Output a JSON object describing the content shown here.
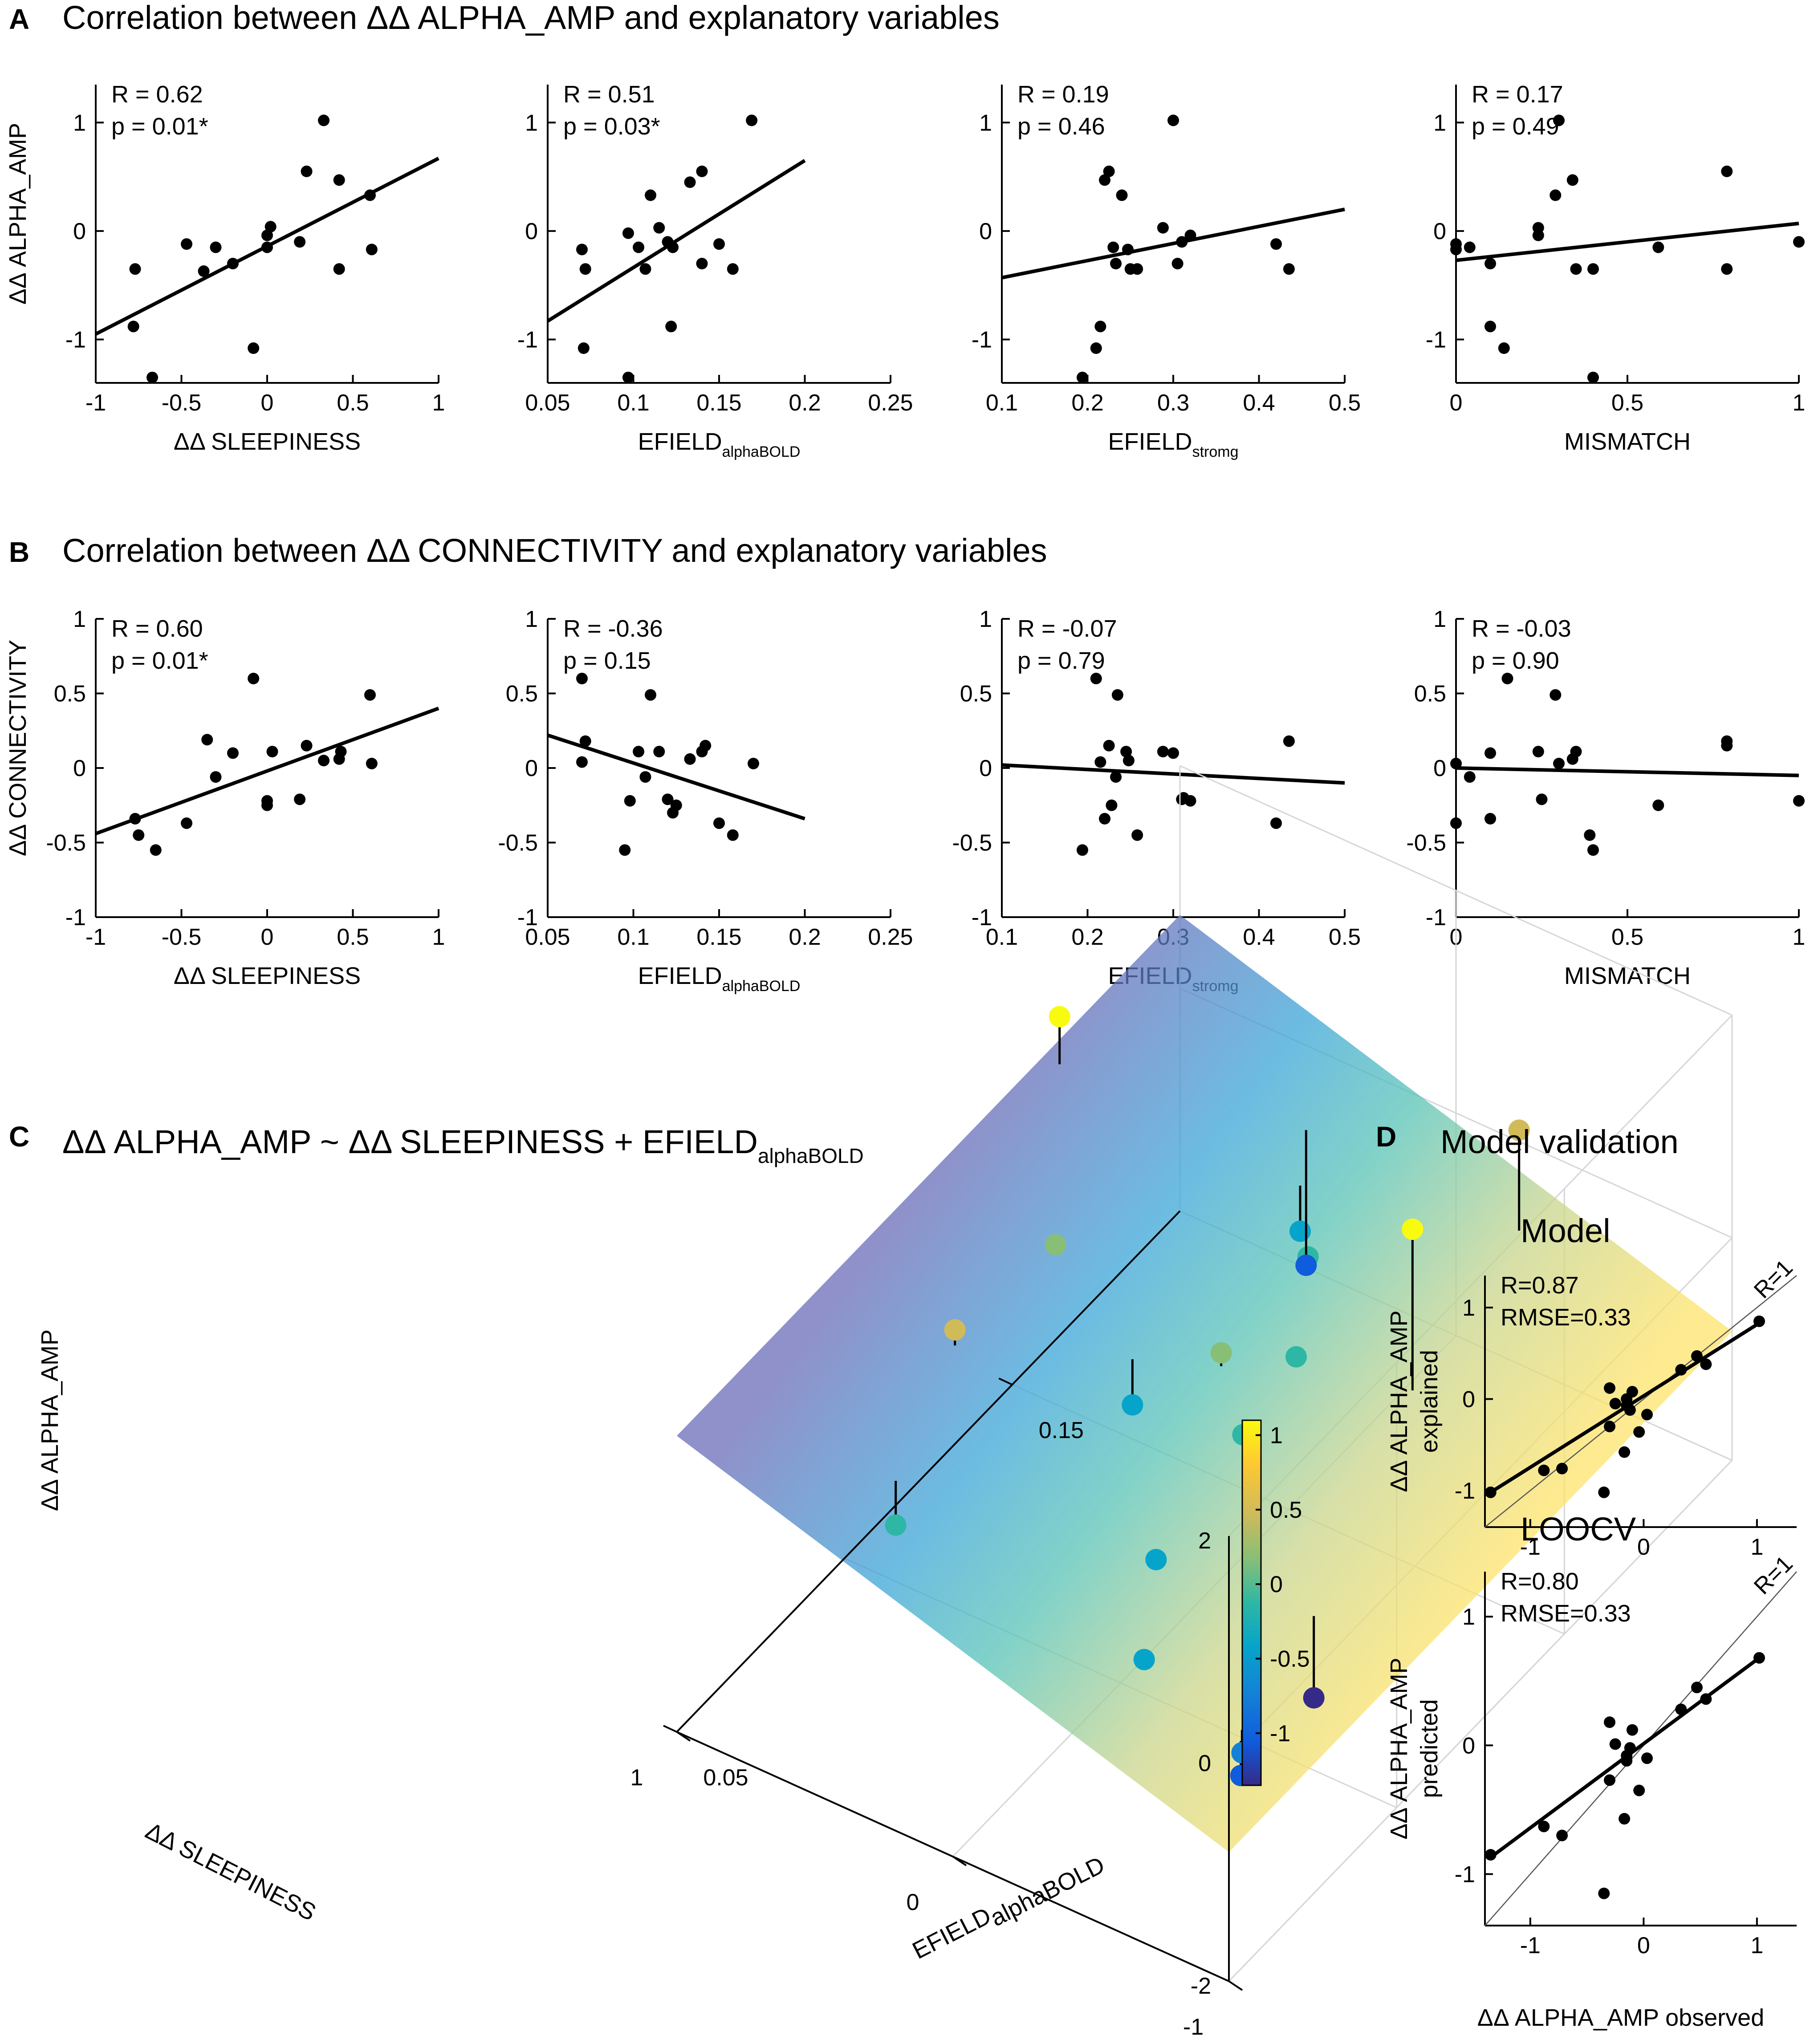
{
  "colors": {
    "parula": [
      "#352a87",
      "#0f5cdd",
      "#1481d6",
      "#06a4ca",
      "#2eb7a4",
      "#87bf77",
      "#d1bb59",
      "#fec832",
      "#f9fb0e"
    ],
    "point": "#000000"
  },
  "panels": {
    "A": {
      "letter": "A",
      "title": "Correlation between ΔΔ ALPHA_AMP and explanatory variables",
      "ylabel": "ΔΔ ALPHA_AMP"
    },
    "B": {
      "letter": "B",
      "title": "Correlation between ΔΔ CONNECTIVITY and explanatory variables",
      "ylabel": "ΔΔ CONNECTIVITY"
    },
    "C": {
      "letter": "C",
      "title_main": "ΔΔ ALPHA_AMP ~ ΔΔ SLEEPINESS + EFIELD",
      "title_sub": "alphaBOLD",
      "zlabel": "ΔΔ ALPHA_AMP",
      "xlabel": "ΔΔ SLEEPINESS",
      "ylabel_main": "EFIELD",
      "ylabel_sub": "alphaBOLD"
    },
    "D": {
      "letter": "D",
      "title": "Model validation",
      "xlabel": "ΔΔ ALPHA_AMP observed",
      "ref_label": "R=1"
    }
  },
  "chart_data": [
    {
      "id": "A1",
      "type": "scatter",
      "panel": "A",
      "stat_r": "R = 0.62",
      "stat_p": "p = 0.01*",
      "xlabel_main": "ΔΔ SLEEPINESS",
      "xlabel_sub": "",
      "xlim": [
        -1,
        1
      ],
      "ylim": [
        -1.4,
        1.35
      ],
      "xticks": [
        -1,
        -0.5,
        0,
        0.5,
        1
      ],
      "xtick_labels": [
        "-1",
        "-0.5",
        "0",
        "0.5",
        "1"
      ],
      "yticks": [
        -1,
        0,
        1
      ],
      "ytick_labels": [
        "-1",
        "0",
        "1"
      ],
      "x": [
        -0.77,
        -0.78,
        -0.67,
        -0.47,
        -0.37,
        -0.3,
        -0.2,
        -0.08,
        0.0,
        0.02,
        0.0,
        0.19,
        0.23,
        0.33,
        0.42,
        0.42,
        0.6,
        0.61
      ],
      "y": [
        -0.35,
        -0.88,
        -1.35,
        -0.12,
        -0.37,
        -0.15,
        -0.3,
        -1.08,
        -0.04,
        0.04,
        -0.15,
        -0.1,
        0.55,
        1.02,
        0.47,
        -0.35,
        0.33,
        -0.17
      ],
      "fit": [
        [
          -1,
          -0.95
        ],
        [
          1,
          0.67
        ]
      ]
    },
    {
      "id": "A2",
      "type": "scatter",
      "panel": "A",
      "stat_r": "R = 0.51",
      "stat_p": "p = 0.03*",
      "xlabel_main": "EFIELD",
      "xlabel_sub": "alphaBOLD",
      "xlim": [
        0.05,
        0.25
      ],
      "ylim": [
        -1.4,
        1.35
      ],
      "xticks": [
        0.05,
        0.1,
        0.15,
        0.2,
        0.25
      ],
      "xtick_labels": [
        "0.05",
        "0.1",
        "0.15",
        "0.2",
        "0.25"
      ],
      "yticks": [
        -1,
        0,
        1
      ],
      "ytick_labels": [
        "-1",
        "0",
        "1"
      ],
      "x": [
        0.07,
        0.072,
        0.071,
        0.097,
        0.097,
        0.103,
        0.107,
        0.11,
        0.115,
        0.12,
        0.122,
        0.123,
        0.133,
        0.14,
        0.14,
        0.15,
        0.158,
        0.169
      ],
      "y": [
        -0.17,
        -0.35,
        -1.08,
        -1.35,
        -0.02,
        -0.15,
        -0.35,
        0.33,
        0.03,
        -0.1,
        -0.88,
        -0.15,
        0.45,
        0.55,
        -0.3,
        -0.12,
        -0.35,
        1.02
      ],
      "fit": [
        [
          0.05,
          -0.83
        ],
        [
          0.2,
          0.65
        ]
      ]
    },
    {
      "id": "A3",
      "type": "scatter",
      "panel": "A",
      "stat_r": "R = 0.19",
      "stat_p": "p = 0.46",
      "xlabel_main": "EFIELD",
      "xlabel_sub": "stromg",
      "xlim": [
        0.1,
        0.5
      ],
      "ylim": [
        -1.4,
        1.35
      ],
      "xticks": [
        0.1,
        0.2,
        0.3,
        0.4,
        0.5
      ],
      "xtick_labels": [
        "0.1",
        "0.2",
        "0.3",
        "0.4",
        "0.5"
      ],
      "yticks": [
        -1,
        0,
        1
      ],
      "ytick_labels": [
        "-1",
        "0",
        "1"
      ],
      "x": [
        0.194,
        0.21,
        0.215,
        0.22,
        0.225,
        0.23,
        0.233,
        0.24,
        0.247,
        0.25,
        0.258,
        0.288,
        0.3,
        0.305,
        0.31,
        0.32,
        0.42,
        0.435
      ],
      "y": [
        -1.35,
        -1.08,
        -0.88,
        0.47,
        0.55,
        -0.15,
        -0.3,
        0.33,
        -0.17,
        -0.35,
        -0.35,
        0.03,
        1.02,
        -0.3,
        -0.1,
        -0.04,
        -0.12,
        -0.35
      ],
      "fit": [
        [
          0.1,
          -0.43
        ],
        [
          0.5,
          0.2
        ]
      ]
    },
    {
      "id": "A4",
      "type": "scatter",
      "panel": "A",
      "stat_r": "R = 0.17",
      "stat_p": "p = 0.49",
      "xlabel_main": "MISMATCH",
      "xlabel_sub": "",
      "xlim": [
        0,
        1
      ],
      "ylim": [
        -1.4,
        1.35
      ],
      "xticks": [
        0,
        0.5,
        1
      ],
      "xtick_labels": [
        "0",
        "0.5",
        "1"
      ],
      "yticks": [
        -1,
        0,
        1
      ],
      "ytick_labels": [
        "-1",
        "0",
        "1"
      ],
      "x": [
        0.0,
        0.0,
        0.04,
        0.1,
        0.1,
        0.14,
        0.24,
        0.24,
        0.29,
        0.3,
        0.34,
        0.35,
        0.4,
        0.4,
        0.59,
        0.79,
        0.79,
        1.0
      ],
      "y": [
        -0.12,
        -0.17,
        -0.15,
        -0.3,
        -0.88,
        -1.08,
        0.03,
        -0.04,
        0.33,
        1.02,
        0.47,
        -0.35,
        -0.35,
        -1.35,
        -0.15,
        0.55,
        -0.35,
        -0.1
      ],
      "fit": [
        [
          0,
          -0.27
        ],
        [
          1,
          0.07
        ]
      ]
    },
    {
      "id": "B1",
      "type": "scatter",
      "panel": "B",
      "stat_r": "R = 0.60",
      "stat_p": "p = 0.01*",
      "xlabel_main": "ΔΔ SLEEPINESS",
      "xlabel_sub": "",
      "xlim": [
        -1,
        1
      ],
      "ylim": [
        -1,
        1
      ],
      "xticks": [
        -1,
        -0.5,
        0,
        0.5,
        1
      ],
      "xtick_labels": [
        "-1",
        "-0.5",
        "0",
        "0.5",
        "1"
      ],
      "yticks": [
        -1,
        -0.5,
        0,
        0.5,
        1
      ],
      "ytick_labels": [
        "-1",
        "-0.5",
        "0",
        "0.5",
        "1"
      ],
      "x": [
        -0.77,
        -0.75,
        -0.65,
        -0.47,
        -0.35,
        -0.3,
        -0.2,
        -0.08,
        0.0,
        0.0,
        0.03,
        0.19,
        0.23,
        0.33,
        0.42,
        0.43,
        0.6,
        0.61
      ],
      "y": [
        -0.34,
        -0.45,
        -0.55,
        -0.37,
        0.19,
        -0.06,
        0.1,
        0.6,
        -0.22,
        -0.25,
        0.11,
        -0.21,
        0.15,
        0.05,
        0.06,
        0.11,
        0.49,
        0.03
      ],
      "fit": [
        [
          -1,
          -0.44
        ],
        [
          1,
          0.4
        ]
      ]
    },
    {
      "id": "B2",
      "type": "scatter",
      "panel": "B",
      "stat_r": "R = -0.36",
      "stat_p": "p = 0.15",
      "xlabel_main": "EFIELD",
      "xlabel_sub": "alphaBOLD",
      "xlim": [
        0.05,
        0.25
      ],
      "ylim": [
        -1,
        1
      ],
      "xticks": [
        0.05,
        0.1,
        0.15,
        0.2,
        0.25
      ],
      "xtick_labels": [
        "0.05",
        "0.1",
        "0.15",
        "0.2",
        "0.25"
      ],
      "yticks": [
        -1,
        -0.5,
        0,
        0.5,
        1
      ],
      "ytick_labels": [
        "-1",
        "-0.5",
        "0",
        "0.5",
        "1"
      ],
      "x": [
        0.07,
        0.07,
        0.072,
        0.095,
        0.098,
        0.103,
        0.107,
        0.11,
        0.115,
        0.12,
        0.123,
        0.125,
        0.133,
        0.14,
        0.142,
        0.15,
        0.158,
        0.17
      ],
      "y": [
        0.6,
        0.04,
        0.18,
        -0.55,
        -0.22,
        0.11,
        -0.06,
        0.49,
        0.11,
        -0.21,
        -0.3,
        -0.25,
        0.06,
        0.11,
        0.15,
        -0.37,
        -0.45,
        0.03
      ],
      "fit": [
        [
          0.05,
          0.22
        ],
        [
          0.2,
          -0.34
        ]
      ]
    },
    {
      "id": "B3",
      "type": "scatter",
      "panel": "B",
      "stat_r": "R = -0.07",
      "stat_p": "p = 0.79",
      "xlabel_main": "EFIELD",
      "xlabel_sub": "stromg",
      "xlim": [
        0.1,
        0.5
      ],
      "ylim": [
        -1,
        1
      ],
      "xticks": [
        0.1,
        0.2,
        0.3,
        0.4,
        0.5
      ],
      "xtick_labels": [
        "0.1",
        "0.2",
        "0.3",
        "0.4",
        "0.5"
      ],
      "yticks": [
        -1,
        -0.5,
        0,
        0.5,
        1
      ],
      "ytick_labels": [
        "-1",
        "-0.5",
        "0",
        "0.5",
        "1"
      ],
      "x": [
        0.194,
        0.21,
        0.215,
        0.22,
        0.225,
        0.228,
        0.233,
        0.235,
        0.245,
        0.248,
        0.258,
        0.288,
        0.3,
        0.31,
        0.312,
        0.32,
        0.42,
        0.435
      ],
      "y": [
        -0.55,
        0.6,
        0.04,
        -0.34,
        0.15,
        -0.25,
        -0.06,
        0.49,
        0.11,
        0.05,
        -0.45,
        0.11,
        0.1,
        -0.21,
        -0.2,
        -0.22,
        -0.37,
        0.18
      ],
      "fit": [
        [
          0.1,
          0.02
        ],
        [
          0.5,
          -0.1
        ]
      ]
    },
    {
      "id": "B4",
      "type": "scatter",
      "panel": "B",
      "stat_r": "R = -0.03",
      "stat_p": "p = 0.90",
      "xlabel_main": "MISMATCH",
      "xlabel_sub": "",
      "xlim": [
        0,
        1
      ],
      "ylim": [
        -1,
        1
      ],
      "xticks": [
        0,
        0.5,
        1
      ],
      "xtick_labels": [
        "0",
        "0.5",
        "1"
      ],
      "yticks": [
        -1,
        -0.5,
        0,
        0.5,
        1
      ],
      "ytick_labels": [
        "-1",
        "-0.5",
        "0",
        "0.5",
        "1"
      ],
      "x": [
        0.0,
        0.0,
        0.04,
        0.1,
        0.1,
        0.15,
        0.24,
        0.25,
        0.29,
        0.3,
        0.34,
        0.35,
        0.39,
        0.4,
        0.59,
        0.79,
        0.79,
        1.0
      ],
      "y": [
        0.03,
        -0.37,
        -0.06,
        0.1,
        -0.34,
        0.6,
        0.11,
        -0.21,
        0.49,
        0.03,
        0.06,
        0.11,
        -0.45,
        -0.55,
        -0.25,
        0.15,
        0.18,
        -0.22
      ],
      "fit": [
        [
          0,
          0.0
        ],
        [
          1,
          -0.05
        ]
      ]
    },
    {
      "id": "C",
      "type": "scatter",
      "panel": "C",
      "projection": "3d",
      "xlim": [
        -1,
        1
      ],
      "ylim": [
        0.05,
        0.2
      ],
      "zlim": [
        -2,
        2
      ],
      "xticks": [
        -1,
        0,
        1
      ],
      "xtick_labels": [
        "-1",
        "0",
        "1"
      ],
      "yticks": [
        0.05,
        0.15
      ],
      "ytick_labels": [
        "0.05",
        "0.15"
      ],
      "zticks": [
        -2,
        0,
        2
      ],
      "ztick_labels": [
        "-2",
        "0",
        "2"
      ],
      "plane": {
        "b0": -0.09,
        "b_sleep": 0.75,
        "b_efield": 0.0
      },
      "colorbar": {
        "min": -1.35,
        "max": 1.1,
        "ticks": [
          -1,
          -0.5,
          0,
          0.5,
          1
        ],
        "tick_labels": [
          "-1",
          "-0.5",
          "0",
          "0.5",
          "1"
        ]
      },
      "x": [
        -0.8,
        -0.78,
        -0.7,
        -0.45,
        -0.25,
        -0.45,
        -0.35,
        -0.2,
        -0.15,
        0.0,
        0.05,
        0.2,
        0.2,
        0.3,
        0.6,
        0.45,
        0.6,
        0.95
      ],
      "y": [
        0.07,
        0.072,
        0.1,
        0.07,
        0.09,
        0.15,
        0.19,
        0.12,
        0.14,
        0.13,
        0.16,
        0.12,
        0.17,
        0.18,
        0.1,
        0.07,
        0.13,
        0.16
      ],
      "z": [
        -1.0,
        -0.88,
        -1.35,
        -0.35,
        -0.3,
        1.02,
        0.55,
        -0.17,
        -0.15,
        0.03,
        -0.1,
        -0.35,
        -0.35,
        -1.08,
        0.5,
        -0.15,
        0.33,
        1.05
      ]
    },
    {
      "id": "D1",
      "type": "scatter",
      "panel": "D",
      "title": "Model",
      "stat_r": "R=0.87",
      "stat_rmse": "RMSE=0.33",
      "ylabel_main": "ΔΔ ALPHA_AMP",
      "ylabel_sub": "explained",
      "xlim": [
        -1.4,
        1.35
      ],
      "ylim": [
        -1.4,
        1.35
      ],
      "xticks": [
        -1,
        0,
        1
      ],
      "xtick_labels": [
        "-1",
        "0",
        "1"
      ],
      "yticks": [
        -1,
        0,
        1
      ],
      "ytick_labels": [
        "-1",
        "0",
        "1"
      ],
      "x": [
        -1.35,
        -0.88,
        -0.72,
        -0.35,
        -0.3,
        -0.3,
        -0.25,
        -0.17,
        -0.15,
        -0.15,
        -0.12,
        -0.1,
        -0.04,
        0.03,
        0.33,
        0.47,
        0.55,
        1.02
      ],
      "y": [
        -1.02,
        -0.78,
        -0.76,
        -1.02,
        0.12,
        -0.3,
        -0.05,
        -0.58,
        0.0,
        -0.07,
        -0.12,
        0.08,
        -0.36,
        -0.17,
        0.32,
        0.47,
        0.38,
        0.85
      ],
      "fit": [
        [
          -1.35,
          -1.02
        ],
        [
          1.02,
          0.83
        ]
      ]
    },
    {
      "id": "D2",
      "type": "scatter",
      "panel": "D",
      "title": "LOOCV",
      "stat_r": "R=0.80",
      "stat_rmse": "RMSE=0.33",
      "ylabel_main": "ΔΔ ALPHA_AMP",
      "ylabel_sub": "predicted",
      "xlim": [
        -1.4,
        1.35
      ],
      "ylim": [
        -1.4,
        1.35
      ],
      "xticks": [
        -1,
        0,
        1
      ],
      "xtick_labels": [
        "-1",
        "0",
        "1"
      ],
      "yticks": [
        -1,
        0,
        1
      ],
      "ytick_labels": [
        "-1",
        "0",
        "1"
      ],
      "x": [
        -1.35,
        -0.88,
        -0.72,
        -0.35,
        -0.3,
        -0.3,
        -0.25,
        -0.17,
        -0.15,
        -0.15,
        -0.12,
        -0.1,
        -0.04,
        0.03,
        0.33,
        0.47,
        0.55,
        1.02
      ],
      "y": [
        -0.85,
        -0.63,
        -0.7,
        -1.15,
        0.18,
        -0.27,
        0.01,
        -0.57,
        -0.08,
        -0.12,
        -0.02,
        0.12,
        -0.35,
        -0.1,
        0.28,
        0.45,
        0.36,
        0.68
      ],
      "fit": [
        [
          -1.35,
          -0.87
        ],
        [
          1.02,
          0.68
        ]
      ]
    }
  ]
}
